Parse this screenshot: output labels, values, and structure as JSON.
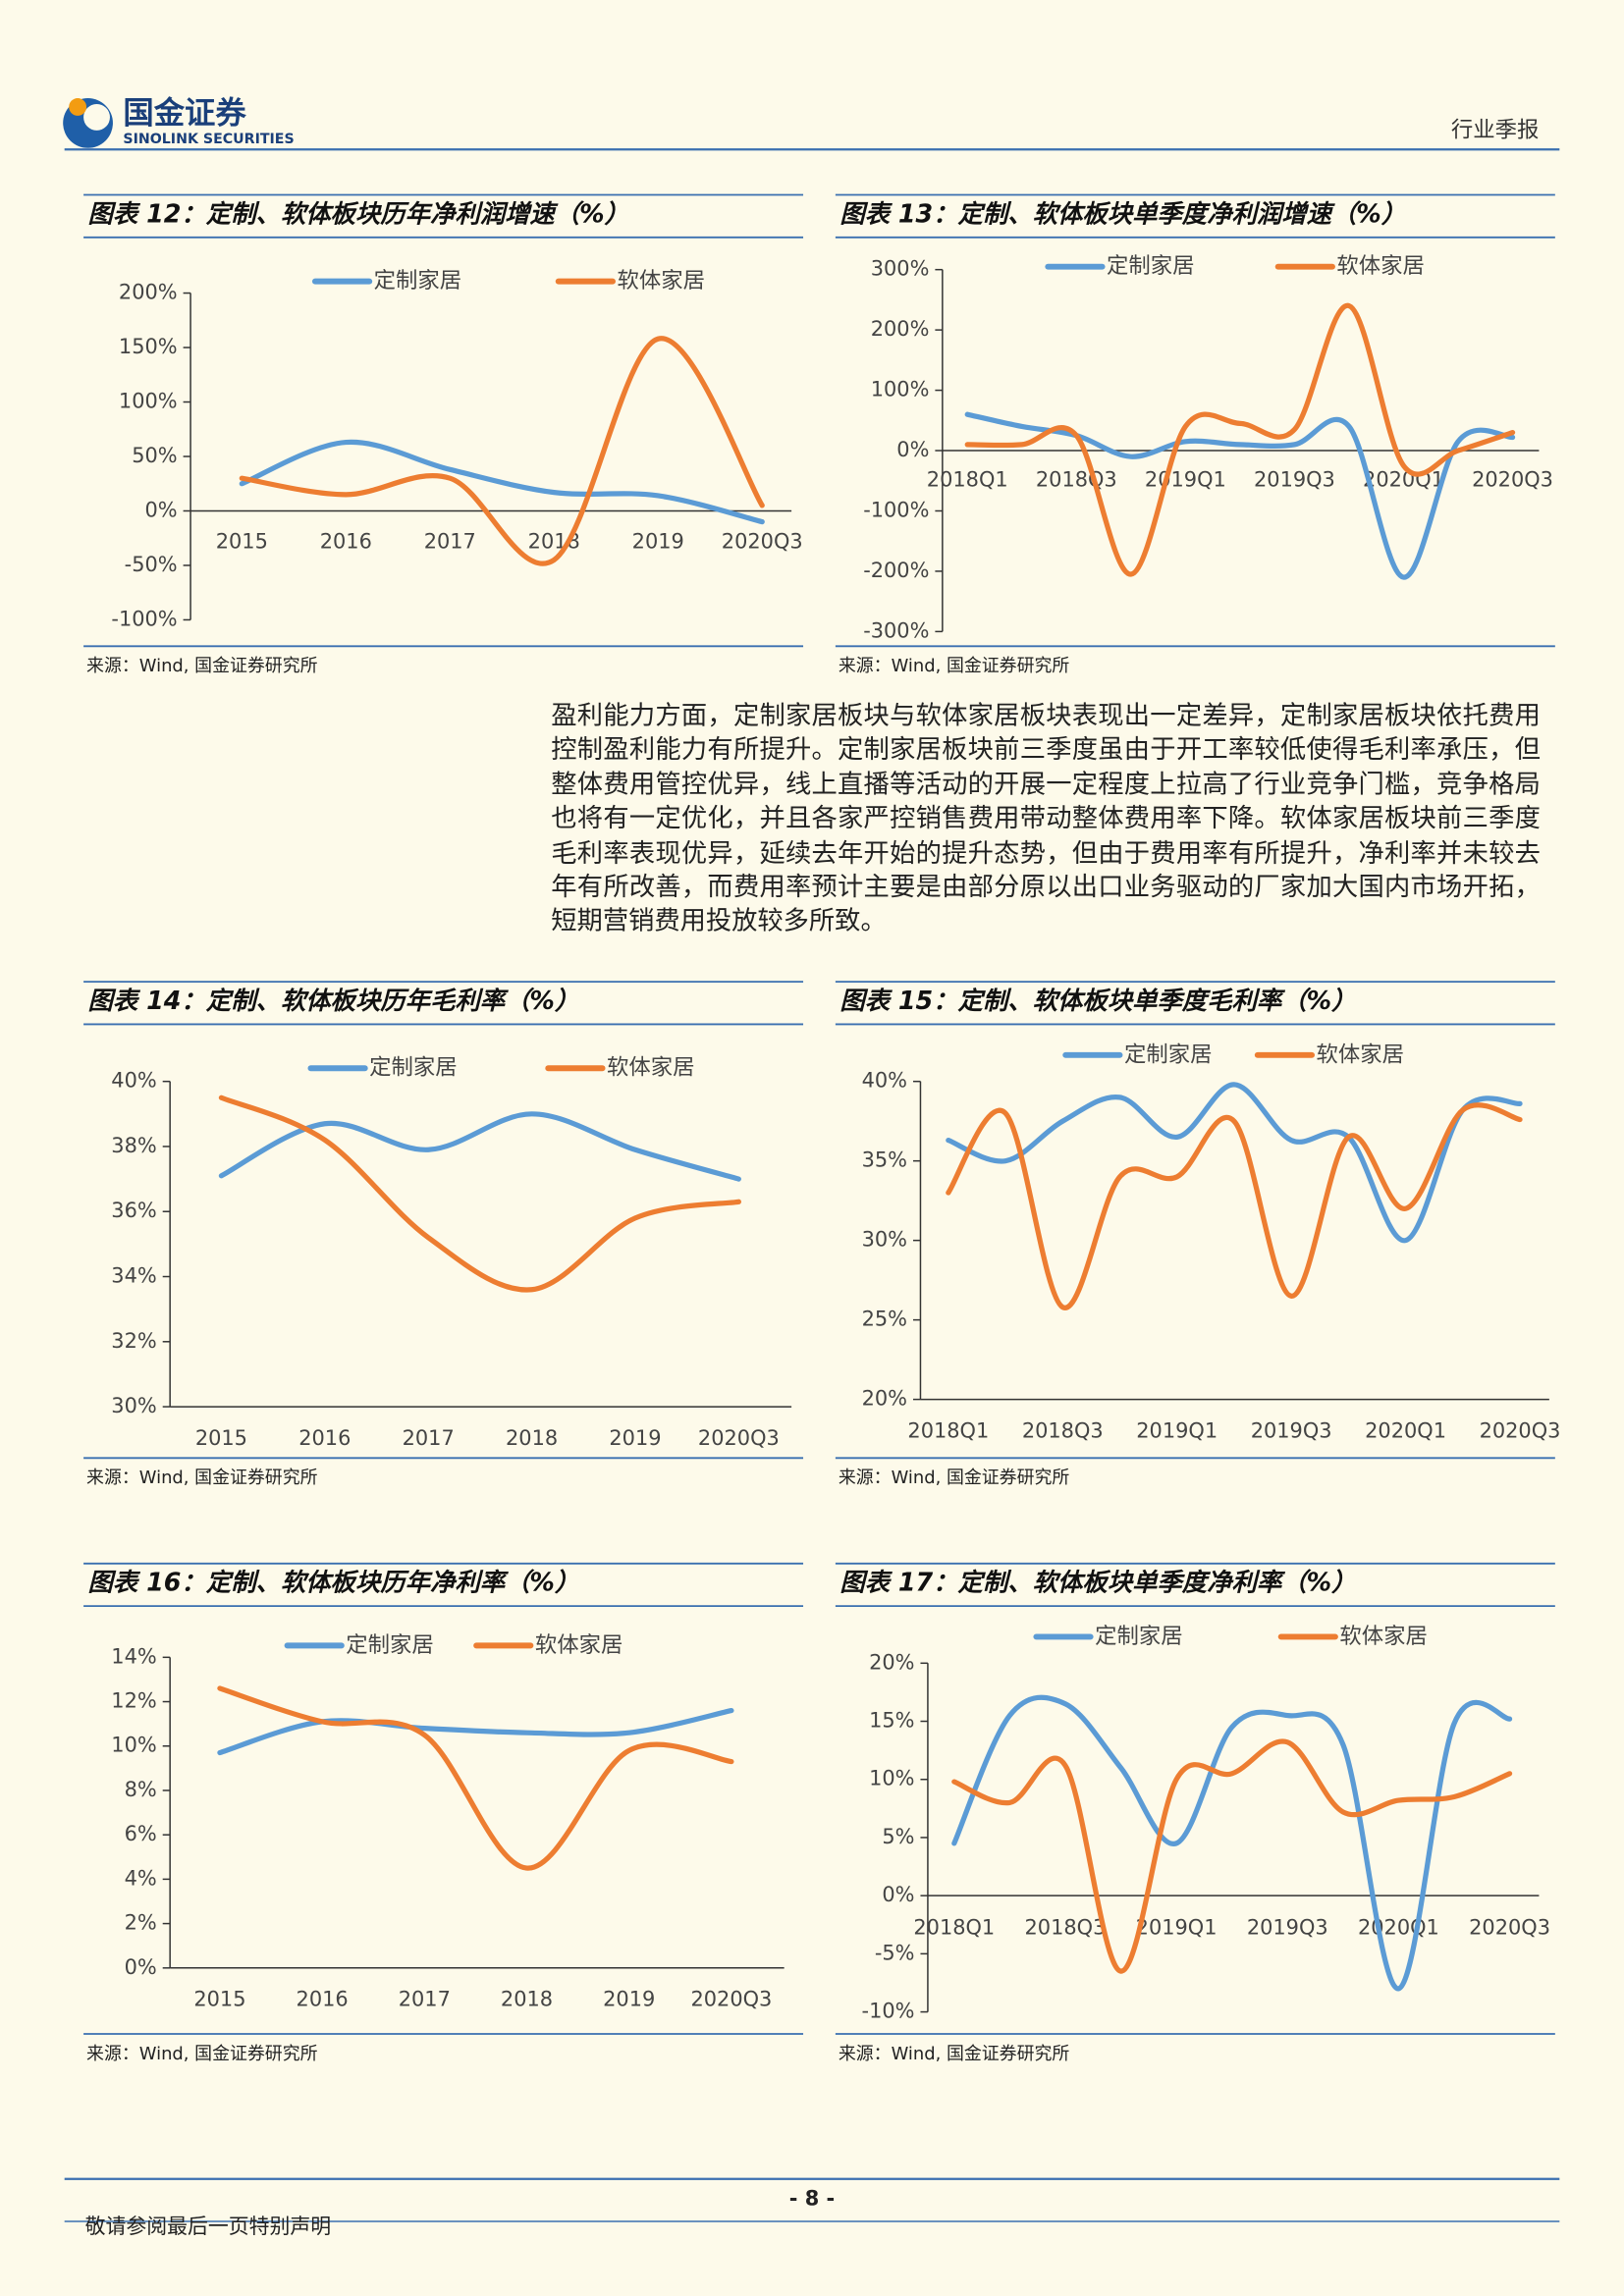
{
  "header": {
    "logo_cn": "国金证券",
    "logo_en": "SINOLINK SECURITIES",
    "report_type": "行业季报"
  },
  "body_text": "盈利能力方面，定制家居板块与软体家居板块表现出一定差异，定制家居板块依托费用控制盈利能力有所提升。定制家居板块前三季度虽由于开工率较低使得毛利率承压，但整体费用管控优异，线上直播等活动的开展一定程度上拉高了行业竞争门槛，竞争格局也将有一定优化，并且各家严控销售费用带动整体费用率下降。软体家居板块前三季度毛利率表现优异，延续去年开始的提升态势，但由于费用率有所提升，净利率并未较去年有所改善，而费用率预计主要是由部分原以出口业务驱动的厂家加大国内市场开拓，短期营销费用投放较多所致。",
  "chart_data": [
    {
      "type": "line",
      "title": "图表 12：定制、软体板块历年净利润增速（%）",
      "source": "来源：Wind, 国金证券研究所",
      "categories": [
        "2015",
        "2016",
        "2017",
        "2018",
        "2019",
        "2020Q3"
      ],
      "series": [
        {
          "name": "定制家居",
          "color": "#5b9bd5",
          "values": [
            25,
            63,
            38,
            17,
            14,
            -10
          ]
        },
        {
          "name": "软体家居",
          "color": "#ed7d31",
          "values": [
            30,
            15,
            30,
            -45,
            158,
            5
          ]
        }
      ],
      "ylim": [
        -100,
        200
      ],
      "yticks": [
        {
          "value": -100,
          "label": "-100%"
        },
        {
          "value": -50,
          "label": "-50%"
        },
        {
          "value": 0,
          "label": "0%"
        },
        {
          "value": 50,
          "label": "50%"
        },
        {
          "value": 100,
          "label": "100%"
        },
        {
          "value": 150,
          "label": "150%"
        },
        {
          "value": 200,
          "label": "200%"
        }
      ]
    },
    {
      "type": "line",
      "title": "图表 13：定制、软体板块单季度净利润增速（%）",
      "source": "来源：Wind, 国金证券研究所",
      "categories": [
        "2018Q1",
        null,
        "2018Q3",
        null,
        "2019Q1",
        null,
        "2019Q3",
        null,
        "2020Q1",
        null,
        "2020Q3"
      ],
      "series": [
        {
          "name": "定制家居",
          "color": "#5b9bd5",
          "values": [
            60,
            40,
            25,
            -10,
            15,
            10,
            10,
            40,
            -210,
            15,
            22
          ]
        },
        {
          "name": "软体家居",
          "color": "#ed7d31",
          "values": [
            10,
            10,
            25,
            -205,
            40,
            45,
            35,
            240,
            -25,
            0,
            30
          ]
        }
      ],
      "ylim": [
        -300,
        300
      ],
      "yticks": [
        {
          "value": -300,
          "label": "-300%"
        },
        {
          "value": -200,
          "label": "-200%"
        },
        {
          "value": -100,
          "label": "-100%"
        },
        {
          "value": 0,
          "label": "0%"
        },
        {
          "value": 100,
          "label": "100%"
        },
        {
          "value": 200,
          "label": "200%"
        },
        {
          "value": 300,
          "label": "300%"
        }
      ]
    },
    {
      "type": "line",
      "title": "图表 14：定制、软体板块历年毛利率（%）",
      "source": "来源：Wind, 国金证券研究所",
      "categories": [
        "2015",
        "2016",
        "2017",
        "2018",
        "2019",
        "2020Q3"
      ],
      "series": [
        {
          "name": "定制家居",
          "color": "#5b9bd5",
          "values": [
            37.1,
            38.7,
            37.9,
            39.0,
            37.9,
            37.0
          ]
        },
        {
          "name": "软体家居",
          "color": "#ed7d31",
          "values": [
            39.5,
            38.2,
            35.2,
            33.6,
            35.8,
            36.3
          ]
        }
      ],
      "ylim": [
        30,
        40
      ],
      "yticks": [
        {
          "value": 30,
          "label": "30%"
        },
        {
          "value": 32,
          "label": "32%"
        },
        {
          "value": 34,
          "label": "34%"
        },
        {
          "value": 36,
          "label": "36%"
        },
        {
          "value": 38,
          "label": "38%"
        },
        {
          "value": 40,
          "label": "40%"
        }
      ]
    },
    {
      "type": "line",
      "title": "图表 15：定制、软体板块单季度毛利率（%）",
      "source": "来源：Wind, 国金证券研究所",
      "categories": [
        "2018Q1",
        null,
        "2018Q3",
        null,
        "2019Q1",
        null,
        "2019Q3",
        null,
        "2020Q1",
        null,
        "2020Q3"
      ],
      "series": [
        {
          "name": "定制家居",
          "color": "#5b9bd5",
          "values": [
            36.3,
            35.0,
            37.5,
            39.0,
            36.5,
            39.8,
            36.3,
            36.5,
            30.0,
            38.2,
            38.6
          ]
        },
        {
          "name": "软体家居",
          "color": "#ed7d31",
          "values": [
            33.0,
            38.0,
            25.8,
            34.0,
            34.0,
            37.5,
            26.5,
            36.5,
            32.0,
            38.2,
            37.6
          ]
        }
      ],
      "ylim": [
        20,
        40
      ],
      "yticks": [
        {
          "value": 20,
          "label": "20%"
        },
        {
          "value": 25,
          "label": "25%"
        },
        {
          "value": 30,
          "label": "30%"
        },
        {
          "value": 35,
          "label": "35%"
        },
        {
          "value": 40,
          "label": "40%"
        }
      ]
    },
    {
      "type": "line",
      "title": "图表 16：定制、软体板块历年净利率（%）",
      "source": "来源：Wind, 国金证券研究所",
      "categories": [
        "2015",
        "2016",
        "2017",
        "2018",
        "2019",
        "2020Q3"
      ],
      "series": [
        {
          "name": "定制家居",
          "color": "#5b9bd5",
          "values": [
            9.7,
            11.1,
            10.8,
            10.6,
            10.6,
            11.6
          ]
        },
        {
          "name": "软体家居",
          "color": "#ed7d31",
          "values": [
            12.6,
            11.1,
            10.5,
            4.5,
            9.8,
            9.3
          ]
        }
      ],
      "ylim": [
        0,
        14
      ],
      "yticks": [
        {
          "value": 0,
          "label": "0%"
        },
        {
          "value": 2,
          "label": "2%"
        },
        {
          "value": 4,
          "label": "4%"
        },
        {
          "value": 6,
          "label": "6%"
        },
        {
          "value": 8,
          "label": "8%"
        },
        {
          "value": 10,
          "label": "10%"
        },
        {
          "value": 12,
          "label": "12%"
        },
        {
          "value": 14,
          "label": "14%"
        }
      ]
    },
    {
      "type": "line",
      "title": "图表 17：定制、软体板块单季度净利率（%）",
      "source": "来源：Wind, 国金证券研究所",
      "categories": [
        "2018Q1",
        null,
        "2018Q3",
        null,
        "2019Q1",
        null,
        "2019Q3",
        null,
        "2020Q1",
        null,
        "2020Q3"
      ],
      "series": [
        {
          "name": "定制家居",
          "color": "#5b9bd5",
          "values": [
            4.5,
            15.5,
            16.5,
            11.0,
            4.5,
            14.5,
            15.5,
            13.0,
            -8.0,
            14.8,
            15.2
          ]
        },
        {
          "name": "软体家居",
          "color": "#ed7d31",
          "values": [
            9.8,
            8.0,
            11.2,
            -6.5,
            10.0,
            10.5,
            13.2,
            7.2,
            8.2,
            8.5,
            10.5
          ]
        }
      ],
      "ylim": [
        -10,
        20
      ],
      "yticks": [
        {
          "value": -10,
          "label": "-10%"
        },
        {
          "value": -5,
          "label": "-5%"
        },
        {
          "value": 0,
          "label": "0%"
        },
        {
          "value": 5,
          "label": "5%"
        },
        {
          "value": 10,
          "label": "10%"
        },
        {
          "value": 15,
          "label": "15%"
        },
        {
          "value": 20,
          "label": "20%"
        }
      ]
    }
  ],
  "footer": {
    "page": "- 8 -",
    "disclaimer": "敬请参阅最后一页特别声明"
  }
}
